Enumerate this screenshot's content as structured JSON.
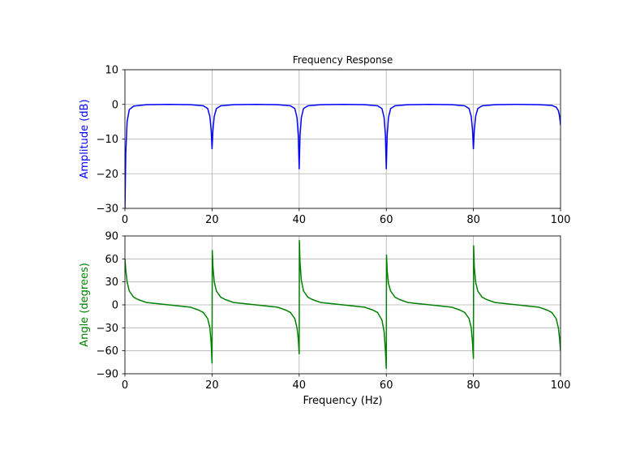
{
  "chart_data": [
    {
      "type": "line",
      "title": "Frequency Response",
      "xlabel": "",
      "ylabel": "Amplitude (dB)",
      "xlim": [
        0,
        100
      ],
      "ylim": [
        -30,
        10
      ],
      "xticks": [
        0,
        20,
        40,
        60,
        80,
        100
      ],
      "yticks": [
        -30,
        -20,
        -10,
        0,
        10
      ],
      "xtick_labels": [
        "0",
        "20",
        "40",
        "60",
        "80",
        "100"
      ],
      "ytick_labels": [
        "−30",
        "−20",
        "−10",
        "0",
        "10"
      ],
      "grid": true,
      "color": "#0000ff",
      "ylabel_color": "#0000ff",
      "series": [
        {
          "x": [
            0,
            0.2,
            0.5,
            1,
            2,
            5,
            10,
            15,
            18,
            19,
            19.5,
            19.8,
            20,
            20.2,
            20.5,
            21,
            22,
            25,
            30,
            35,
            38,
            39,
            39.5,
            39.8,
            40,
            40.2,
            40.5,
            41,
            42,
            45,
            50,
            55,
            58,
            59,
            59.5,
            59.8,
            60,
            60.2,
            60.5,
            61,
            62,
            65,
            70,
            75,
            78,
            79,
            79.5,
            79.8,
            80,
            80.2,
            80.5,
            81,
            82,
            85,
            90,
            95,
            98,
            99,
            99.5,
            99.8,
            100
          ],
          "y": [
            -30,
            -14,
            -5,
            -1.5,
            -0.5,
            -0.1,
            0,
            -0.1,
            -0.4,
            -1.2,
            -3.5,
            -7.5,
            -12.8,
            -7.5,
            -3.5,
            -1.2,
            -0.4,
            -0.1,
            0,
            -0.1,
            -0.4,
            -1.2,
            -3.8,
            -9,
            -18.6,
            -9,
            -3.8,
            -1.2,
            -0.4,
            -0.1,
            0,
            -0.1,
            -0.4,
            -1.2,
            -3.8,
            -9,
            -18.6,
            -9,
            -3.8,
            -1.2,
            -0.4,
            -0.1,
            0,
            -0.1,
            -0.4,
            -1.2,
            -3.5,
            -7.5,
            -12.8,
            -7.5,
            -3.5,
            -1.2,
            -0.4,
            -0.1,
            0,
            -0.1,
            -0.3,
            -0.8,
            -1.8,
            -3.5,
            -6
          ]
        }
      ]
    },
    {
      "type": "line",
      "title": "",
      "xlabel": "Frequency (Hz)",
      "ylabel": "Angle (degrees)",
      "xlim": [
        0,
        100
      ],
      "ylim": [
        -90,
        90
      ],
      "xticks": [
        0,
        20,
        40,
        60,
        80,
        100
      ],
      "yticks": [
        -90,
        -60,
        -30,
        0,
        30,
        60,
        90
      ],
      "xtick_labels": [
        "0",
        "20",
        "40",
        "60",
        "80",
        "100"
      ],
      "ytick_labels": [
        "−90",
        "−60",
        "−30",
        "0",
        "30",
        "60",
        "90"
      ],
      "grid": true,
      "color": "#008000",
      "ylabel_color": "#008000",
      "series": [
        {
          "x": [
            0,
            0.2,
            0.5,
            1,
            2,
            3,
            5,
            10,
            15,
            17,
            18,
            19,
            19.5,
            19.8,
            20,
            20.05,
            20.2,
            20.5,
            21,
            22,
            23,
            25,
            30,
            35,
            37,
            38,
            39,
            39.5,
            39.8,
            40,
            40.05,
            40.2,
            40.5,
            41,
            42,
            43,
            45,
            50,
            55,
            57,
            58,
            59,
            59.5,
            59.8,
            60,
            60.05,
            60.2,
            60.5,
            61,
            62,
            63,
            65,
            70,
            75,
            77,
            78,
            79,
            79.5,
            79.8,
            80,
            80.05,
            80.2,
            80.5,
            81,
            82,
            83,
            85,
            90,
            95,
            97,
            98,
            99,
            99.5,
            99.8,
            100
          ],
          "y": [
            60,
            45,
            30,
            18,
            10,
            7,
            3,
            0,
            -3,
            -7,
            -10,
            -18,
            -30,
            -50,
            -76,
            71,
            50,
            30,
            18,
            10,
            7,
            3,
            0,
            -3,
            -7,
            -10,
            -18,
            -30,
            -45,
            -64,
            84,
            55,
            32,
            18,
            10,
            7,
            3,
            0,
            -3,
            -7,
            -10,
            -20,
            -35,
            -60,
            -83,
            65,
            45,
            28,
            18,
            10,
            7,
            3,
            0,
            -3,
            -7,
            -10,
            -18,
            -30,
            -50,
            -70,
            77,
            50,
            30,
            18,
            10,
            7,
            3,
            0,
            -3,
            -7,
            -10,
            -18,
            -30,
            -45,
            -60
          ]
        }
      ]
    }
  ]
}
